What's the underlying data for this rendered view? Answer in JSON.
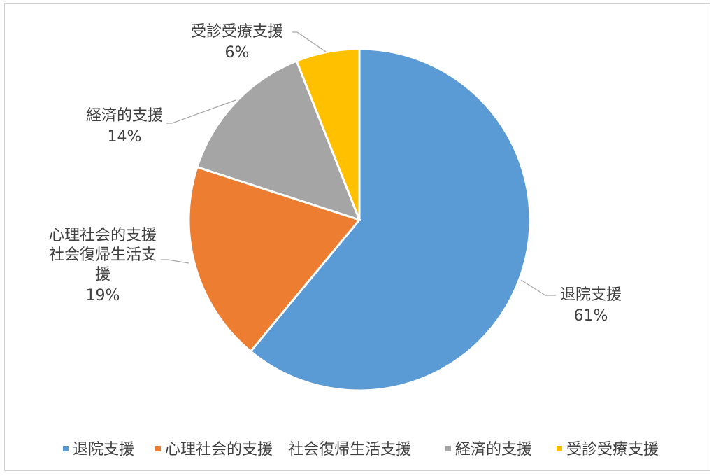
{
  "chart_data": {
    "type": "pie",
    "title": "",
    "slices": [
      {
        "label": "退院支援",
        "value": 61,
        "display": "61%",
        "color": "#5b9bd5"
      },
      {
        "label": "心理社会的支援　社会復帰生活支援",
        "value": 19,
        "display": "19%",
        "color": "#ed7d31",
        "label_lines": [
          "心理社会的支援",
          "社会復帰生活支",
          "援"
        ]
      },
      {
        "label": "経済的支援",
        "value": 14,
        "display": "14%",
        "color": "#a5a5a5"
      },
      {
        "label": "受診受療支援",
        "value": 6,
        "display": "6%",
        "color": "#ffc000"
      }
    ],
    "legend_position": "bottom"
  }
}
